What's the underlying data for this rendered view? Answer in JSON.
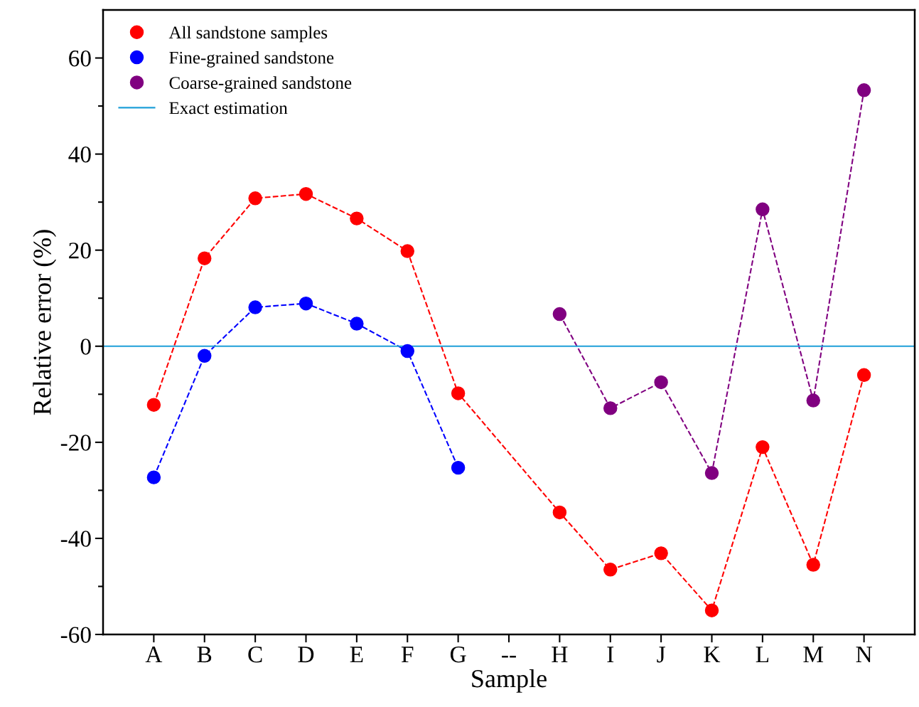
{
  "chart_data": {
    "type": "line",
    "xlabel": "Sample",
    "ylabel": "Relative error (%)",
    "categories": [
      "A",
      "B",
      "C",
      "D",
      "E",
      "F",
      "G",
      "--",
      "H",
      "I",
      "J",
      "K",
      "L",
      "M",
      "N"
    ],
    "series": [
      {
        "name": "All sandstone samples",
        "color": "#ff0000",
        "marker": "circle",
        "values": [
          -12.2,
          18.3,
          30.8,
          31.7,
          26.6,
          19.8,
          -9.8,
          null,
          -34.6,
          -46.5,
          -43.1,
          -55,
          -21,
          -45.5,
          -6
        ]
      },
      {
        "name": "Fine-grained sandstone",
        "color": "#0000ff",
        "marker": "circle",
        "values": [
          -27.3,
          -2,
          8.1,
          8.9,
          4.7,
          -1,
          -25.3,
          null,
          null,
          null,
          null,
          null,
          null,
          null,
          null
        ]
      },
      {
        "name": "Coarse-grained sandstone",
        "color": "#800080",
        "marker": "circle",
        "values": [
          null,
          null,
          null,
          null,
          null,
          null,
          null,
          null,
          6.7,
          -12.9,
          -7.5,
          -26.4,
          28.5,
          -11.3,
          53.3
        ]
      }
    ],
    "line_style": "dashed",
    "ref_lines": [
      {
        "axis": "y",
        "value": 0,
        "label": "Exact estimation",
        "color": "#1e9fd8"
      }
    ],
    "ylim": [
      -60,
      70
    ],
    "yticks": [
      -60,
      {
        "value": -50,
        "label": null
      },
      -40,
      {
        "value": -30,
        "label": null
      },
      -20,
      {
        "value": -10,
        "label": null
      },
      0,
      {
        "value": 10,
        "label": null
      },
      20,
      {
        "value": 30,
        "label": null
      },
      40,
      {
        "value": 50,
        "label": null
      },
      60
    ],
    "grid": false,
    "legend": "top left"
  }
}
